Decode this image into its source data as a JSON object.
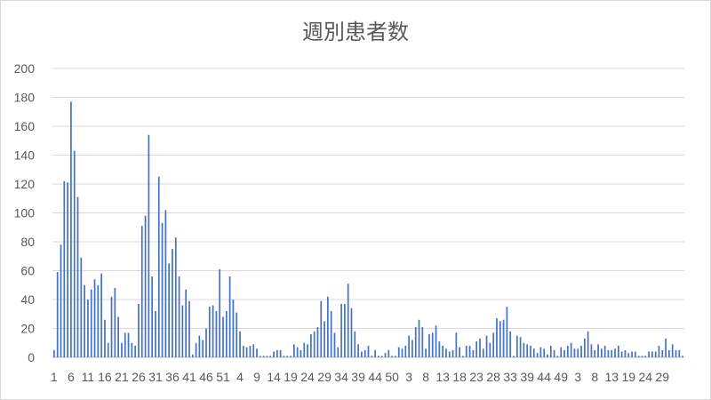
{
  "chart_data": {
    "type": "bar",
    "title": "週別患者数",
    "xlabel": "",
    "ylabel": "",
    "ylim": [
      0,
      200
    ],
    "y_ticks": [
      0,
      20,
      40,
      60,
      80,
      100,
      120,
      140,
      160,
      180,
      200
    ],
    "x_tick_labels": [
      "1",
      "6",
      "11",
      "16",
      "21",
      "26",
      "31",
      "36",
      "41",
      "46",
      "51",
      "4",
      "9",
      "14",
      "19",
      "24",
      "29",
      "34",
      "39",
      "44",
      "50",
      "3",
      "8",
      "13",
      "18",
      "23",
      "28",
      "33",
      "39",
      "44",
      "49",
      "3",
      "8",
      "13",
      "19",
      "24",
      "29"
    ],
    "grid": true,
    "bar_color": "#4472c4",
    "categories": [
      "1",
      "2",
      "3",
      "4",
      "5",
      "6",
      "7",
      "8",
      "9",
      "10",
      "11",
      "12",
      "13",
      "14",
      "15",
      "16",
      "17",
      "18",
      "19",
      "20",
      "21",
      "22",
      "23",
      "24",
      "25",
      "26",
      "27",
      "28",
      "29",
      "30",
      "31",
      "32",
      "33",
      "34",
      "35",
      "36",
      "37",
      "38",
      "39",
      "40",
      "41",
      "42",
      "43",
      "44",
      "45",
      "46",
      "47",
      "48",
      "49",
      "50",
      "51",
      "52",
      "1",
      "2",
      "3",
      "4",
      "5",
      "6",
      "7",
      "8",
      "9",
      "10",
      "11",
      "12",
      "13",
      "14",
      "15",
      "16",
      "17",
      "18",
      "19",
      "20",
      "21",
      "22",
      "23",
      "24",
      "25",
      "26",
      "27",
      "28",
      "29",
      "30",
      "31",
      "32",
      "33",
      "34",
      "35",
      "36",
      "37",
      "38",
      "39",
      "40",
      "41",
      "42",
      "43",
      "44",
      "45",
      "46",
      "47",
      "48",
      "49",
      "50",
      "51",
      "52",
      "1",
      "2",
      "3",
      "4",
      "5",
      "6",
      "7",
      "8",
      "9",
      "10",
      "11",
      "12",
      "13",
      "14",
      "15",
      "16",
      "17",
      "18",
      "19",
      "20",
      "21",
      "22",
      "23",
      "24",
      "25",
      "26",
      "27",
      "28",
      "29",
      "30",
      "31",
      "32",
      "33",
      "34",
      "35",
      "36",
      "37",
      "38",
      "39",
      "40",
      "41",
      "42",
      "43",
      "44",
      "45",
      "46",
      "47",
      "48",
      "49",
      "50",
      "51",
      "52",
      "1",
      "2",
      "3",
      "4",
      "5",
      "6",
      "7",
      "8",
      "9",
      "10",
      "11",
      "12",
      "13",
      "14",
      "15",
      "16",
      "17",
      "18",
      "19",
      "20",
      "21",
      "22",
      "23",
      "24",
      "25",
      "26",
      "27",
      "28",
      "29",
      "30",
      "31"
    ],
    "values": [
      5,
      59,
      78,
      122,
      121,
      177,
      143,
      111,
      69,
      50,
      40,
      47,
      54,
      50,
      58,
      26,
      10,
      42,
      48,
      28,
      10,
      17,
      17,
      10,
      8,
      37,
      91,
      98,
      154,
      56,
      32,
      125,
      93,
      102,
      65,
      75,
      83,
      56,
      36,
      47,
      39,
      2,
      10,
      15,
      12,
      20,
      35,
      36,
      32,
      61,
      28,
      32,
      56,
      40,
      31,
      18,
      8,
      7,
      8,
      9,
      6,
      1,
      1,
      1,
      1,
      4,
      5,
      5,
      1,
      1,
      1,
      9,
      7,
      5,
      10,
      9,
      16,
      18,
      21,
      39,
      25,
      42,
      32,
      17,
      7,
      37,
      37,
      51,
      34,
      18,
      9,
      4,
      5,
      8,
      1,
      5,
      1,
      1,
      3,
      5,
      1,
      1,
      7,
      6,
      8,
      15,
      12,
      21,
      26,
      21,
      6,
      16,
      17,
      22,
      11,
      8,
      6,
      4,
      5,
      17,
      7,
      1,
      8,
      8,
      5,
      11,
      13,
      6,
      15,
      10,
      17,
      27,
      25,
      26,
      35,
      18,
      1,
      15,
      14,
      10,
      9,
      8,
      6,
      3,
      7,
      6,
      2,
      8,
      5,
      1,
      7,
      5,
      8,
      10,
      6,
      6,
      8,
      13,
      18,
      9,
      5,
      9,
      6,
      8,
      5,
      5,
      6,
      8,
      4,
      5,
      3,
      4,
      4,
      1,
      1,
      1,
      4,
      4,
      4,
      8,
      5,
      13,
      5,
      9,
      5,
      5,
      1
    ]
  }
}
